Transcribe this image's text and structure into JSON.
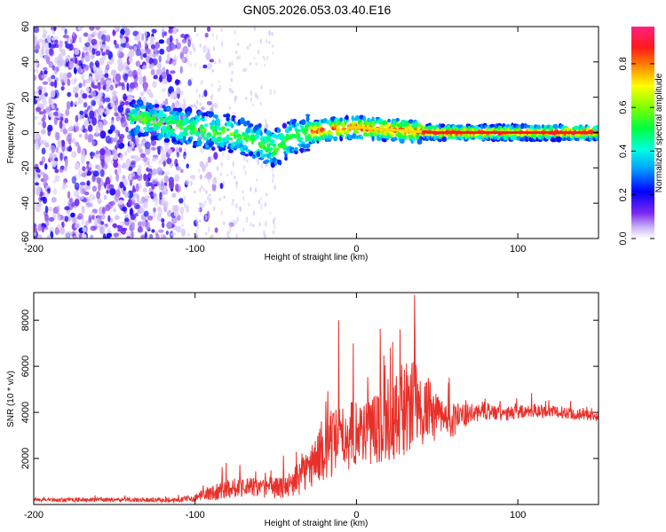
{
  "title": "GN05.2026.053.03.40.E16",
  "chart_data": [
    {
      "type": "heatmap",
      "name": "spectrogram",
      "xlabel": "Height of straight line (km)",
      "ylabel": "Frequency (Hz)",
      "xlim": [
        -200,
        150
      ],
      "ylim": [
        -60,
        60
      ],
      "xticks": [
        -200,
        -100,
        0,
        100
      ],
      "yticks": [
        -60,
        -40,
        -20,
        0,
        20,
        40,
        60
      ],
      "colorbar": {
        "label": "Normalized spectral amplitude",
        "range": [
          0,
          0.97
        ],
        "ticks": [
          0.0,
          0.2,
          0.4,
          0.6,
          0.8
        ]
      },
      "ridge": {
        "description_points_x": [
          -135,
          -120,
          -100,
          -80,
          -65,
          -50,
          -40,
          -30,
          -15,
          0,
          15,
          30,
          50,
          80,
          110,
          150
        ],
        "description_points_y": [
          8,
          5,
          2,
          0,
          -4,
          -9,
          -3,
          0,
          2,
          3,
          2,
          1,
          0,
          0,
          0,
          0
        ]
      }
    },
    {
      "type": "line",
      "name": "snr",
      "xlabel": "Height of straight line (km)",
      "ylabel": "SNR (10 * v/v)",
      "xlim": [
        -200,
        150
      ],
      "ylim": [
        0,
        9200
      ],
      "xticks": [
        -200,
        -100,
        0,
        100
      ],
      "yticks": [
        2000,
        4000,
        6000,
        8000
      ],
      "color": "#e8302a",
      "envelope_x": [
        -200,
        -110,
        -100,
        -90,
        -80,
        -70,
        -60,
        -50,
        -40,
        -30,
        -25,
        -20,
        -15,
        -10,
        -5,
        0,
        10,
        20,
        30,
        35,
        40,
        50,
        60,
        70,
        80,
        90,
        100,
        110,
        120,
        130,
        140,
        150
      ],
      "envelope_base": [
        200,
        200,
        300,
        500,
        700,
        800,
        700,
        700,
        900,
        1500,
        2000,
        2300,
        2600,
        2800,
        3000,
        3200,
        3300,
        3600,
        4000,
        4300,
        4200,
        3800,
        3700,
        3900,
        4100,
        3900,
        4000,
        4100,
        4000,
        4000,
        3900,
        3800
      ],
      "envelope_amp": [
        150,
        200,
        300,
        700,
        900,
        900,
        800,
        900,
        1200,
        1800,
        2200,
        2600,
        3000,
        3000,
        3000,
        3000,
        3200,
        3400,
        4000,
        4000,
        3500,
        2000,
        1500,
        900,
        800,
        700,
        600,
        600,
        600,
        500,
        500,
        400
      ],
      "peaks": [
        {
          "x": -11,
          "y": 8000
        },
        {
          "x": -2,
          "y": 7000
        },
        {
          "x": 36,
          "y": 9100
        },
        {
          "x": 27,
          "y": 7600
        },
        {
          "x": 21,
          "y": 6800
        }
      ]
    }
  ]
}
